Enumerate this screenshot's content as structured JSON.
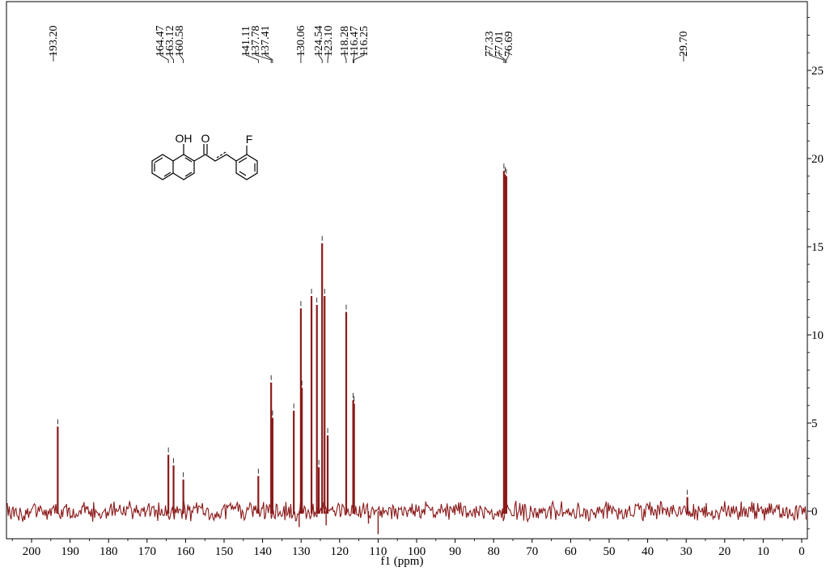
{
  "chart_data": {
    "type": "line",
    "xlabel": "f1 (ppm)",
    "x_reversed": true,
    "xlim": [
      0,
      205
    ],
    "ylim": [
      -1.3,
      28
    ],
    "x_ticks": [
      200,
      190,
      180,
      170,
      160,
      150,
      140,
      130,
      120,
      110,
      100,
      90,
      80,
      70,
      60,
      50,
      40,
      30,
      20,
      10,
      0
    ],
    "y_ticks": [
      0,
      5,
      10,
      15,
      20,
      25
    ],
    "y_axis_side": "right",
    "line_color": "#8b1a1a",
    "noise_amplitude": 0.45,
    "peaks": [
      {
        "ppm": 193.2,
        "height": 4.8
      },
      {
        "ppm": 164.47,
        "height": 3.2
      },
      {
        "ppm": 163.12,
        "height": 2.6
      },
      {
        "ppm": 160.58,
        "height": 1.8
      },
      {
        "ppm": 141.11,
        "height": 2.0
      },
      {
        "ppm": 137.78,
        "height": 7.3
      },
      {
        "ppm": 137.41,
        "height": 5.3
      },
      {
        "ppm": 131.9,
        "height": 5.7
      },
      {
        "ppm": 130.06,
        "height": 11.5
      },
      {
        "ppm": 129.8,
        "height": 7.0
      },
      {
        "ppm": 127.3,
        "height": 12.2
      },
      {
        "ppm": 125.9,
        "height": 11.7
      },
      {
        "ppm": 125.4,
        "height": 2.5
      },
      {
        "ppm": 124.54,
        "height": 15.2
      },
      {
        "ppm": 123.9,
        "height": 12.2
      },
      {
        "ppm": 123.1,
        "height": 4.3
      },
      {
        "ppm": 118.28,
        "height": 11.3
      },
      {
        "ppm": 116.47,
        "height": 6.3
      },
      {
        "ppm": 116.25,
        "height": 6.1
      },
      {
        "ppm": 77.33,
        "height": 19.3
      },
      {
        "ppm": 77.01,
        "height": 19.1
      },
      {
        "ppm": 76.69,
        "height": 19.0
      },
      {
        "ppm": 29.7,
        "height": 0.8
      }
    ],
    "peak_labels": [
      {
        "text": "193.20",
        "ppm": 193.2,
        "bracket": "single"
      },
      {
        "text": "164.47",
        "ppm": 164.47,
        "bracket": "top"
      },
      {
        "text": "163.12",
        "ppm": 163.12,
        "bracket": "mid"
      },
      {
        "text": "160.58",
        "ppm": 160.58,
        "bracket": "bot"
      },
      {
        "text": "141.11",
        "ppm": 141.11,
        "bracket": "top"
      },
      {
        "text": "137.78",
        "ppm": 137.78,
        "bracket": "mid"
      },
      {
        "text": "137.41",
        "ppm": 137.41,
        "bracket": "bot"
      },
      {
        "text": "130.06",
        "ppm": 130.06,
        "bracket": "bot"
      },
      {
        "text": "124.54",
        "ppm": 124.54,
        "bracket": "mid"
      },
      {
        "text": "123.10",
        "ppm": 123.1,
        "bracket": "top"
      },
      {
        "text": "118.28",
        "ppm": 118.28,
        "bracket": "top"
      },
      {
        "text": "116.47",
        "ppm": 116.47,
        "bracket": "mid"
      },
      {
        "text": "116.25",
        "ppm": 116.25,
        "bracket": "bot"
      },
      {
        "text": "77.33",
        "ppm": 77.33,
        "bracket": "top"
      },
      {
        "text": "77.01",
        "ppm": 77.01,
        "bracket": "mid"
      },
      {
        "text": "76.69",
        "ppm": 76.69,
        "bracket": "bot"
      },
      {
        "text": "29.70",
        "ppm": 29.7,
        "bracket": "single"
      }
    ],
    "structure": {
      "atom_labels": [
        "OH",
        "O",
        "F"
      ]
    }
  }
}
